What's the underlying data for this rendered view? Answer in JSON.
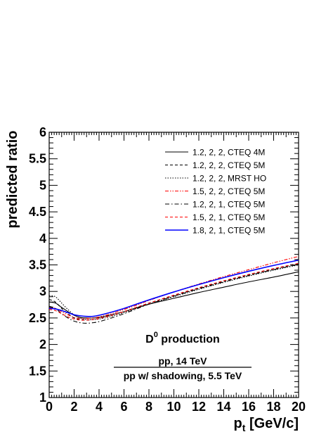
{
  "chart_data": {
    "type": "line",
    "title": "",
    "xlabel": "p",
    "xlabel_sub": "t",
    "xlabel_units": " [GeV/c]",
    "ylabel": "predicted ratio",
    "xlim": [
      0,
      20
    ],
    "ylim": [
      1,
      6
    ],
    "x_ticks": [
      "0",
      "2",
      "4",
      "6",
      "8",
      "10",
      "12",
      "14",
      "16",
      "18",
      "20"
    ],
    "y_ticks": [
      "1",
      "1.5",
      "2",
      "2.5",
      "3",
      "3.5",
      "4",
      "4.5",
      "5",
      "5.5",
      "6"
    ],
    "grid": false,
    "legend_position": "top-right",
    "annotations": {
      "production": "D",
      "production_sup": "0",
      "production_rest": " production",
      "numerator": "pp, 14 TeV",
      "denominator": "pp w/ shadowing, 5.5 TeV"
    },
    "x": [
      0,
      0.5,
      1,
      1.5,
      2,
      2.5,
      3,
      3.5,
      4,
      5,
      6,
      7,
      8,
      10,
      12,
      14,
      16,
      18,
      20
    ],
    "series": [
      {
        "name": "1.2, 2, 2, CTEQ 4M",
        "color": "#000000",
        "dash": "solid",
        "values": [
          2.8,
          2.78,
          2.7,
          2.62,
          2.55,
          2.51,
          2.5,
          2.5,
          2.51,
          2.56,
          2.62,
          2.69,
          2.76,
          2.87,
          2.98,
          3.08,
          3.18,
          3.27,
          3.37
        ]
      },
      {
        "name": "1.2, 2, 2, CTEQ 5M",
        "color": "#000000",
        "dash": "dashed",
        "values": [
          2.85,
          2.8,
          2.68,
          2.58,
          2.5,
          2.47,
          2.46,
          2.47,
          2.49,
          2.55,
          2.62,
          2.7,
          2.78,
          2.92,
          3.06,
          3.19,
          3.31,
          3.42,
          3.52
        ]
      },
      {
        "name": "1.2, 2, 2, MRST HO",
        "color": "#000000",
        "dash": "dotted",
        "values": [
          2.92,
          2.9,
          2.78,
          2.66,
          2.56,
          2.5,
          2.47,
          2.47,
          2.48,
          2.53,
          2.6,
          2.68,
          2.76,
          2.9,
          3.04,
          3.17,
          3.29,
          3.4,
          3.5
        ]
      },
      {
        "name": "1.5, 2, 2, CTEQ 5M",
        "color": "#ff0000",
        "dash": "dashdotdot",
        "values": [
          2.7,
          2.68,
          2.62,
          2.56,
          2.51,
          2.49,
          2.49,
          2.5,
          2.52,
          2.58,
          2.66,
          2.74,
          2.83,
          2.99,
          3.14,
          3.28,
          3.41,
          3.54,
          3.66
        ]
      },
      {
        "name": "1.2, 2, 1, CTEQ 5M",
        "color": "#000000",
        "dash": "dashdot",
        "values": [
          2.72,
          2.68,
          2.58,
          2.5,
          2.44,
          2.41,
          2.4,
          2.41,
          2.43,
          2.5,
          2.58,
          2.67,
          2.76,
          2.91,
          3.05,
          3.18,
          3.3,
          3.41,
          3.51
        ]
      },
      {
        "name": "1.5, 2, 1, CTEQ 5M",
        "color": "#ff0000",
        "dash": "dashed",
        "values": [
          2.66,
          2.64,
          2.58,
          2.52,
          2.48,
          2.46,
          2.46,
          2.47,
          2.49,
          2.55,
          2.62,
          2.7,
          2.78,
          2.93,
          3.07,
          3.2,
          3.32,
          3.43,
          3.53
        ]
      },
      {
        "name": "1.8, 2, 1, CTEQ 5M",
        "color": "#0000ff",
        "dash": "solid",
        "values": [
          2.68,
          2.67,
          2.64,
          2.6,
          2.56,
          2.54,
          2.53,
          2.53,
          2.55,
          2.61,
          2.68,
          2.76,
          2.84,
          2.99,
          3.13,
          3.26,
          3.38,
          3.49,
          3.59
        ]
      }
    ]
  }
}
